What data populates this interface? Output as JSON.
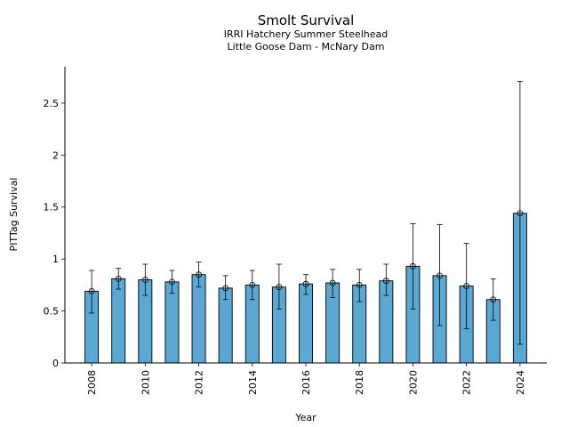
{
  "chart_data": {
    "type": "bar",
    "title": "Smolt Survival",
    "subtitle_lines": [
      "IRRI Hatchery Summer Steelhead",
      "Little Goose Dam - McNary Dam"
    ],
    "xlabel": "Year",
    "ylabel": "PITTag Survival",
    "ylim": [
      0,
      2.85
    ],
    "yticks": [
      0,
      0.5,
      1,
      1.5,
      2,
      2.5
    ],
    "ytick_labels": [
      "0",
      "0.5",
      "1",
      "1.5",
      "2",
      "2.5"
    ],
    "xticks": [
      2008,
      2010,
      2012,
      2014,
      2016,
      2018,
      2020,
      2022,
      2024
    ],
    "xtick_labels": [
      "2008",
      "2010",
      "2012",
      "2014",
      "2016",
      "2018",
      "2020",
      "2022",
      "2024"
    ],
    "xlim": [
      2007,
      2025
    ],
    "grid": false,
    "bar_color": "#5aa8d4",
    "points": [
      {
        "x": 2008,
        "y": 0.69,
        "lo": 0.48,
        "hi": 0.89
      },
      {
        "x": 2009,
        "y": 0.81,
        "lo": 0.71,
        "hi": 0.91
      },
      {
        "x": 2010,
        "y": 0.8,
        "lo": 0.65,
        "hi": 0.95
      },
      {
        "x": 2011,
        "y": 0.78,
        "lo": 0.67,
        "hi": 0.89
      },
      {
        "x": 2012,
        "y": 0.85,
        "lo": 0.73,
        "hi": 0.97
      },
      {
        "x": 2013,
        "y": 0.72,
        "lo": 0.61,
        "hi": 0.84
      },
      {
        "x": 2014,
        "y": 0.75,
        "lo": 0.61,
        "hi": 0.89
      },
      {
        "x": 2015,
        "y": 0.73,
        "lo": 0.52,
        "hi": 0.95
      },
      {
        "x": 2016,
        "y": 0.76,
        "lo": 0.66,
        "hi": 0.85
      },
      {
        "x": 2017,
        "y": 0.77,
        "lo": 0.63,
        "hi": 0.9
      },
      {
        "x": 2018,
        "y": 0.75,
        "lo": 0.59,
        "hi": 0.9
      },
      {
        "x": 2019,
        "y": 0.79,
        "lo": 0.65,
        "hi": 0.95
      },
      {
        "x": 2020,
        "y": 0.93,
        "lo": 0.52,
        "hi": 1.34
      },
      {
        "x": 2021,
        "y": 0.84,
        "lo": 0.36,
        "hi": 1.33
      },
      {
        "x": 2022,
        "y": 0.74,
        "lo": 0.33,
        "hi": 1.15
      },
      {
        "x": 2023,
        "y": 0.61,
        "lo": 0.41,
        "hi": 0.81
      },
      {
        "x": 2024,
        "y": 1.44,
        "lo": 0.18,
        "hi": 2.71
      }
    ]
  }
}
